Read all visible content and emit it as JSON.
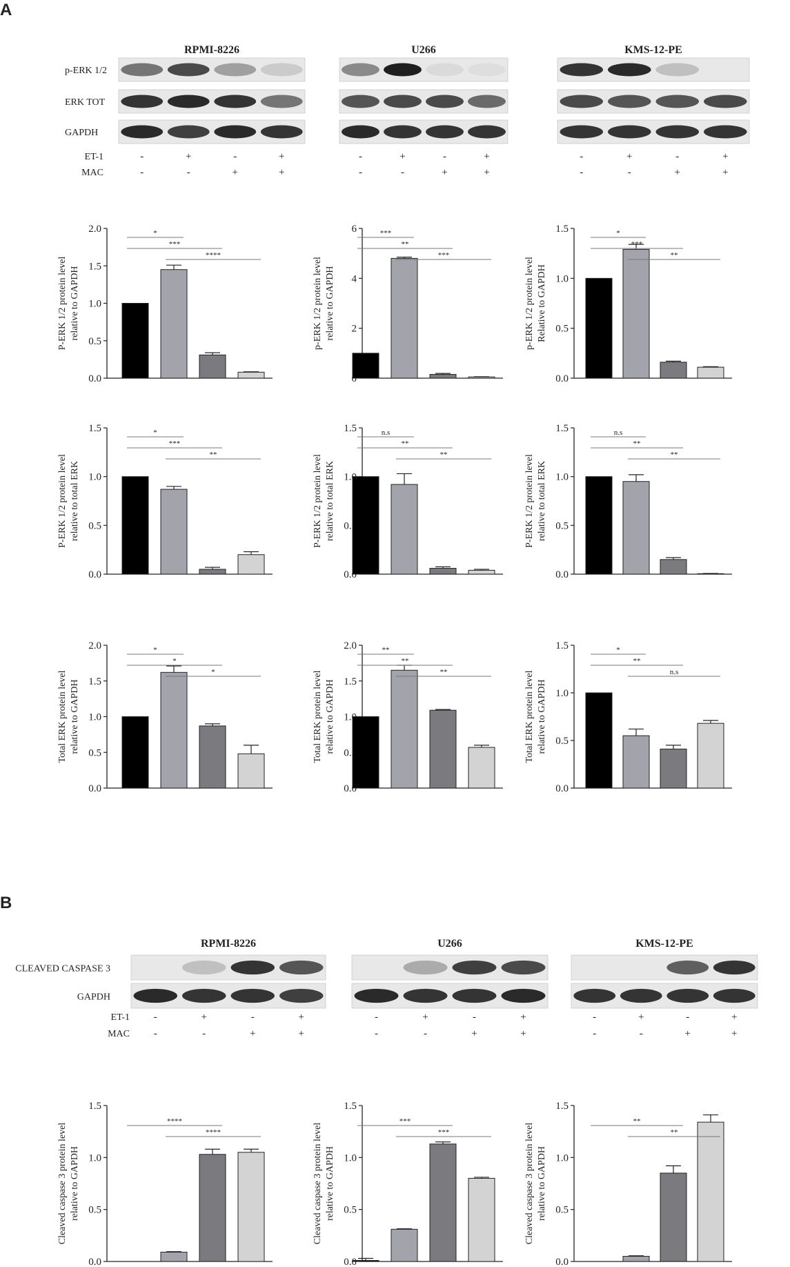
{
  "panels": [
    "A",
    "B"
  ],
  "section_a": {
    "blot_titles": [
      "RPMI-8226",
      "U266",
      "KMS-12-PE"
    ],
    "row_labels": [
      "p-ERK 1/2",
      "ERK TOT",
      "GAPDH"
    ],
    "conditions": [
      "ET-1",
      "MAC"
    ],
    "signs": {
      "et1": [
        "-",
        "+",
        "-",
        "+"
      ],
      "mac": [
        "-",
        "-",
        "+",
        "+"
      ]
    },
    "blots": [
      {
        "bands": [
          [
            0.55,
            0.75,
            0.35,
            0.15
          ],
          [
            0.85,
            0.9,
            0.85,
            0.55
          ],
          [
            0.9,
            0.8,
            0.9,
            0.85
          ]
        ]
      },
      {
        "bands": [
          [
            0.45,
            0.95,
            0.08,
            0.06
          ],
          [
            0.7,
            0.75,
            0.75,
            0.6
          ],
          [
            0.9,
            0.85,
            0.85,
            0.85
          ]
        ]
      },
      {
        "bands": [
          [
            0.85,
            0.9,
            0.2,
            0.0
          ],
          [
            0.75,
            0.7,
            0.7,
            0.75
          ],
          [
            0.85,
            0.85,
            0.85,
            0.85
          ]
        ]
      }
    ]
  },
  "section_b": {
    "blot_titles": [
      "RPMI-8226",
      "U266",
      "KMS-12-PE"
    ],
    "row_labels": [
      "CLEAVED  CASPASE 3",
      "GAPDH"
    ],
    "conditions": [
      "ET-1",
      "MAC"
    ],
    "signs": {
      "et1": [
        "-",
        "+",
        "-",
        "+"
      ],
      "mac": [
        "-",
        "-",
        "+",
        "+"
      ]
    },
    "blots": [
      {
        "bands": [
          [
            0.0,
            0.2,
            0.85,
            0.7
          ],
          [
            0.9,
            0.85,
            0.85,
            0.8
          ]
        ]
      },
      {
        "bands": [
          [
            0.0,
            0.3,
            0.8,
            0.75
          ],
          [
            0.9,
            0.85,
            0.85,
            0.9
          ]
        ]
      },
      {
        "bands": [
          [
            0.0,
            0.0,
            0.65,
            0.85
          ],
          [
            0.85,
            0.85,
            0.85,
            0.85
          ]
        ]
      }
    ]
  },
  "colors": {
    "bars": [
      "#000000",
      "#a3a3ab",
      "#7a7a7f",
      "#d3d3d3"
    ]
  },
  "chart_data": [
    {
      "type": "bar",
      "ylabel_lines": [
        "P-ERK 1/2 protein level",
        "relative to GAPDH"
      ],
      "ylim": [
        0,
        2.0
      ],
      "ticks": [
        [
          "0.0",
          0
        ],
        [
          "0.5",
          0.5
        ],
        [
          "1.0",
          1.0
        ],
        [
          "1.5",
          1.5
        ],
        [
          "2.0",
          2.0
        ]
      ],
      "values": [
        1.0,
        1.45,
        0.31,
        0.08
      ],
      "errors": [
        0,
        0.06,
        0.03,
        0.005
      ],
      "sig": [
        {
          "from": 0,
          "to": 1,
          "label": "*"
        },
        {
          "from": 0,
          "to": 2,
          "label": "***"
        },
        {
          "from": 1,
          "to": 3,
          "label": "****"
        }
      ]
    },
    {
      "type": "bar",
      "ylabel_lines": [
        "p-ERK 1/2 protein level",
        "relative to GAPDH"
      ],
      "ylim": [
        0,
        6
      ],
      "ticks": [
        [
          "0",
          0
        ],
        [
          "2",
          2
        ],
        [
          "4",
          4
        ],
        [
          "6",
          6
        ]
      ],
      "values": [
        1.0,
        4.8,
        0.15,
        0.05
      ],
      "errors": [
        0,
        0.05,
        0.04,
        0.01
      ],
      "sig": [
        {
          "from": 0,
          "to": 1,
          "label": "***"
        },
        {
          "from": 0,
          "to": 2,
          "label": "**"
        },
        {
          "from": 1,
          "to": 3,
          "label": "***"
        }
      ]
    },
    {
      "type": "bar",
      "ylabel_lines": [
        "p-ERK 1/2 protein level",
        "Relative to GAPDH"
      ],
      "ylim": [
        0,
        1.5
      ],
      "ticks": [
        [
          "0.0",
          0
        ],
        [
          "0.5",
          0.5
        ],
        [
          "1.0",
          1.0
        ],
        [
          "1.5",
          1.5
        ]
      ],
      "values": [
        1.0,
        1.29,
        0.16,
        0.11
      ],
      "errors": [
        0,
        0.05,
        0.01,
        0.005
      ],
      "sig": [
        {
          "from": 0,
          "to": 1,
          "label": "*"
        },
        {
          "from": 0,
          "to": 2,
          "label": "***"
        },
        {
          "from": 1,
          "to": 3,
          "label": "**"
        }
      ]
    },
    {
      "type": "bar",
      "ylabel_lines": [
        "P-ERK 1/2 protein level",
        "relative to total ERK"
      ],
      "ylim": [
        0,
        1.5
      ],
      "ticks": [
        [
          "0.0",
          0
        ],
        [
          "0.5",
          0.5
        ],
        [
          "1.0",
          1.0
        ],
        [
          "1.5",
          1.5
        ]
      ],
      "values": [
        1.0,
        0.87,
        0.05,
        0.2
      ],
      "errors": [
        0,
        0.03,
        0.02,
        0.03
      ],
      "sig": [
        {
          "from": 0,
          "to": 1,
          "label": "*"
        },
        {
          "from": 0,
          "to": 2,
          "label": "***"
        },
        {
          "from": 1,
          "to": 3,
          "label": "**"
        }
      ]
    },
    {
      "type": "bar",
      "ylabel_lines": [
        "P-ERK 1/2 protein level",
        "relative to total ERK"
      ],
      "ylim": [
        0,
        1.5
      ],
      "ticks": [
        [
          "0.0",
          0
        ],
        [
          "0.5",
          0.5
        ],
        [
          "1.0",
          1.0
        ],
        [
          "1.5",
          1.5
        ]
      ],
      "values": [
        1.0,
        0.92,
        0.06,
        0.04
      ],
      "errors": [
        0,
        0.11,
        0.015,
        0.01
      ],
      "sig": [
        {
          "from": 0,
          "to": 1,
          "label": "n.s"
        },
        {
          "from": 0,
          "to": 2,
          "label": "**"
        },
        {
          "from": 1,
          "to": 3,
          "label": "**"
        }
      ]
    },
    {
      "type": "bar",
      "ylabel_lines": [
        "P-ERK 1/2 protein level",
        "relative to total ERK"
      ],
      "ylim": [
        0,
        1.5
      ],
      "ticks": [
        [
          "0.0",
          0
        ],
        [
          "0.5",
          0.5
        ],
        [
          "1.0",
          1.0
        ],
        [
          "1.5",
          1.5
        ]
      ],
      "values": [
        1.0,
        0.95,
        0.15,
        0.005
      ],
      "errors": [
        0,
        0.07,
        0.02,
        0.002
      ],
      "sig": [
        {
          "from": 0,
          "to": 1,
          "label": "n.s"
        },
        {
          "from": 0,
          "to": 2,
          "label": "**"
        },
        {
          "from": 1,
          "to": 3,
          "label": "**"
        }
      ]
    },
    {
      "type": "bar",
      "ylabel_lines": [
        "Total ERK  protein level",
        "relative to GAPDH"
      ],
      "ylim": [
        0,
        2.0
      ],
      "ticks": [
        [
          "0.0",
          0
        ],
        [
          "0.5",
          0.5
        ],
        [
          "1.0",
          1.0
        ],
        [
          "1.5",
          1.5
        ],
        [
          "2.0",
          2.0
        ]
      ],
      "values": [
        1.0,
        1.62,
        0.87,
        0.48
      ],
      "errors": [
        0,
        0.09,
        0.03,
        0.12
      ],
      "sig": [
        {
          "from": 0,
          "to": 1,
          "label": "*"
        },
        {
          "from": 0,
          "to": 2,
          "label": "*"
        },
        {
          "from": 1,
          "to": 3,
          "label": "*"
        }
      ]
    },
    {
      "type": "bar",
      "ylabel_lines": [
        "Total ERK  protein level",
        "relative to GAPDH"
      ],
      "ylim": [
        0,
        2.0
      ],
      "ticks": [
        [
          "0.0",
          0
        ],
        [
          "0.5",
          0.5
        ],
        [
          "1.0",
          1.0
        ],
        [
          "1.5",
          1.5
        ],
        [
          "2.0",
          2.0
        ]
      ],
      "values": [
        1.0,
        1.65,
        1.09,
        0.57
      ],
      "errors": [
        0,
        0.07,
        0.01,
        0.03
      ],
      "sig": [
        {
          "from": 0,
          "to": 1,
          "label": "**"
        },
        {
          "from": 0,
          "to": 2,
          "label": "**"
        },
        {
          "from": 1,
          "to": 3,
          "label": "**"
        }
      ]
    },
    {
      "type": "bar",
      "ylabel_lines": [
        "Total ERK  protein level",
        "relative to GAPDH"
      ],
      "ylim": [
        0,
        1.5
      ],
      "ticks": [
        [
          "0.0",
          0
        ],
        [
          "0.5",
          0.5
        ],
        [
          "1.0",
          1.0
        ],
        [
          "1.5",
          1.5
        ]
      ],
      "values": [
        1.0,
        0.55,
        0.41,
        0.68
      ],
      "errors": [
        0,
        0.07,
        0.04,
        0.03
      ],
      "sig": [
        {
          "from": 0,
          "to": 1,
          "label": "*"
        },
        {
          "from": 0,
          "to": 2,
          "label": "**"
        },
        {
          "from": 1,
          "to": 3,
          "label": "n.s"
        }
      ]
    },
    {
      "type": "bar",
      "ylabel_lines": [
        "Cleaved caspase 3 protein level",
        "relative to GAPDH"
      ],
      "ylim": [
        0,
        1.5
      ],
      "ticks": [
        [
          "0.0",
          0
        ],
        [
          "0.5",
          0.5
        ],
        [
          "1.0",
          1.0
        ],
        [
          "1.5",
          1.5
        ]
      ],
      "values": [
        0.0,
        0.09,
        1.03,
        1.05
      ],
      "errors": [
        0,
        0.005,
        0.05,
        0.03
      ],
      "sig": [
        {
          "from": 0,
          "to": 2,
          "label": "****"
        },
        {
          "from": 1,
          "to": 3,
          "label": "****"
        }
      ]
    },
    {
      "type": "bar",
      "ylabel_lines": [
        "Cleaved caspase 3 protein level",
        "relative to GAPDH"
      ],
      "ylim": [
        0,
        1.5
      ],
      "ticks": [
        [
          "0.0",
          0
        ],
        [
          "0.5",
          0.5
        ],
        [
          "1.0",
          1.0
        ],
        [
          "1.5",
          1.5
        ]
      ],
      "values": [
        0.01,
        0.31,
        1.13,
        0.8
      ],
      "errors": [
        0.02,
        0.005,
        0.02,
        0.01
      ],
      "sig": [
        {
          "from": 0,
          "to": 2,
          "label": "***"
        },
        {
          "from": 1,
          "to": 3,
          "label": "***"
        }
      ]
    },
    {
      "type": "bar",
      "ylabel_lines": [
        "Cleaved caspase 3 protein level",
        "relative to GAPDH"
      ],
      "ylim": [
        0,
        1.5
      ],
      "ticks": [
        [
          "0.0",
          0
        ],
        [
          "0.5",
          0.5
        ],
        [
          "1.0",
          1.0
        ],
        [
          "1.5",
          1.5
        ]
      ],
      "values": [
        0.0,
        0.05,
        0.85,
        1.34
      ],
      "errors": [
        0,
        0.005,
        0.07,
        0.07
      ],
      "sig": [
        {
          "from": 0,
          "to": 2,
          "label": "**"
        },
        {
          "from": 1,
          "to": 3,
          "label": "**"
        }
      ]
    }
  ]
}
